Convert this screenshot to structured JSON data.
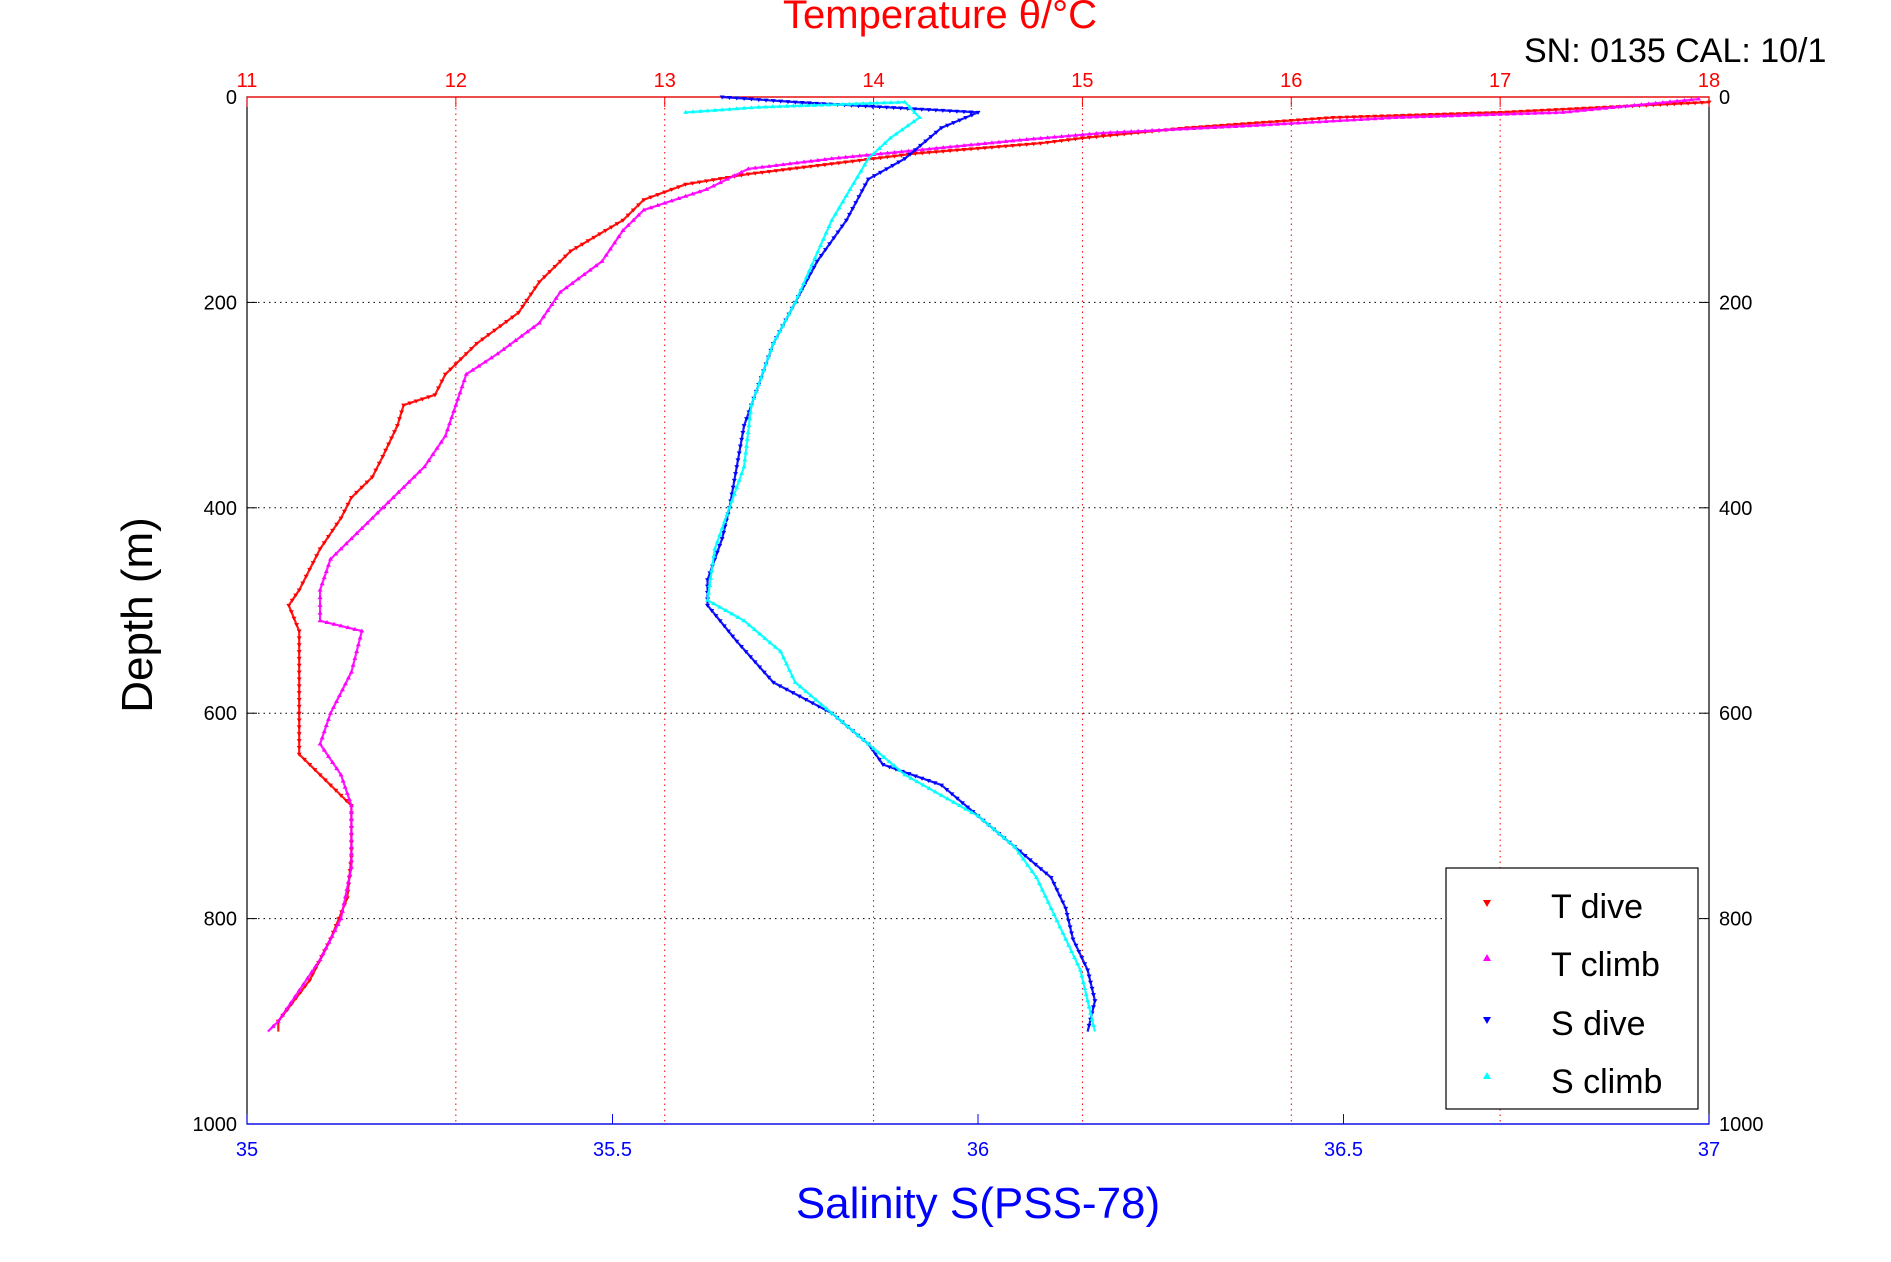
{
  "header": {
    "sn_label": "SN: 0135  CAL: 10/1"
  },
  "colors": {
    "t_dive": "#ff0000",
    "t_climb": "#ff00ff",
    "s_dive": "#0000ff",
    "s_climb": "#00ffff",
    "temp_axis": "#ff0000",
    "sal_axis": "#0000ff",
    "grid": "#000000"
  },
  "chart_data": {
    "type": "line",
    "title": "Temperature θ/°C",
    "xlabel": "Salinity S(PSS-78)",
    "ylabel": "Depth (m)",
    "grid": true,
    "legend_position": "bottom-right",
    "y": {
      "label": "Depth (m)",
      "range": [
        0,
        1000
      ],
      "reversed": true,
      "ticks": [
        0,
        200,
        400,
        600,
        800,
        1000
      ]
    },
    "x_bottom": {
      "label": "Salinity S(PSS-78)",
      "range": [
        35,
        37
      ],
      "ticks": [
        35,
        35.5,
        36,
        36.5,
        37
      ]
    },
    "x_top": {
      "label": "Temperature θ/°C",
      "range": [
        11,
        18
      ],
      "ticks": [
        11,
        12,
        13,
        14,
        15,
        16,
        17,
        18
      ]
    },
    "series": [
      {
        "name": "T dive",
        "axis": "temperature",
        "color": "#ff0000",
        "marker": "down-triangle",
        "points": [
          [
            18.0,
            5
          ],
          [
            17.0,
            15
          ],
          [
            16.2,
            20
          ],
          [
            15.5,
            30
          ],
          [
            15.0,
            40
          ],
          [
            14.8,
            45
          ],
          [
            14.2,
            55
          ],
          [
            13.8,
            65
          ],
          [
            13.4,
            75
          ],
          [
            13.1,
            85
          ],
          [
            12.9,
            100
          ],
          [
            12.8,
            120
          ],
          [
            12.55,
            150
          ],
          [
            12.4,
            180
          ],
          [
            12.3,
            210
          ],
          [
            12.1,
            240
          ],
          [
            11.95,
            270
          ],
          [
            11.9,
            290
          ],
          [
            11.75,
            300
          ],
          [
            11.72,
            320
          ],
          [
            11.65,
            350
          ],
          [
            11.6,
            370
          ],
          [
            11.5,
            390
          ],
          [
            11.45,
            410
          ],
          [
            11.35,
            440
          ],
          [
            11.3,
            460
          ],
          [
            11.25,
            480
          ],
          [
            11.2,
            495
          ],
          [
            11.25,
            520
          ],
          [
            11.25,
            560
          ],
          [
            11.25,
            600
          ],
          [
            11.25,
            640
          ],
          [
            11.35,
            660
          ],
          [
            11.5,
            690
          ],
          [
            11.5,
            740
          ],
          [
            11.48,
            780
          ],
          [
            11.4,
            820
          ],
          [
            11.3,
            860
          ],
          [
            11.15,
            900
          ],
          [
            11.15,
            910
          ]
        ]
      },
      {
        "name": "T climb",
        "axis": "temperature",
        "color": "#ff00ff",
        "marker": "up-triangle",
        "points": [
          [
            17.95,
            2
          ],
          [
            17.3,
            15
          ],
          [
            16.5,
            20
          ],
          [
            15.8,
            28
          ],
          [
            15.1,
            35
          ],
          [
            14.7,
            42
          ],
          [
            14.2,
            52
          ],
          [
            13.8,
            60
          ],
          [
            13.4,
            70
          ],
          [
            13.3,
            80
          ],
          [
            13.2,
            90
          ],
          [
            12.9,
            110
          ],
          [
            12.8,
            130
          ],
          [
            12.7,
            160
          ],
          [
            12.5,
            190
          ],
          [
            12.4,
            220
          ],
          [
            12.2,
            250
          ],
          [
            12.05,
            270
          ],
          [
            12.0,
            300
          ],
          [
            11.95,
            330
          ],
          [
            11.85,
            360
          ],
          [
            11.7,
            390
          ],
          [
            11.55,
            420
          ],
          [
            11.4,
            450
          ],
          [
            11.35,
            480
          ],
          [
            11.35,
            510
          ],
          [
            11.55,
            520
          ],
          [
            11.5,
            560
          ],
          [
            11.4,
            600
          ],
          [
            11.35,
            630
          ],
          [
            11.45,
            660
          ],
          [
            11.5,
            690
          ],
          [
            11.5,
            750
          ],
          [
            11.45,
            800
          ],
          [
            11.35,
            840
          ],
          [
            11.25,
            870
          ],
          [
            11.15,
            900
          ],
          [
            11.1,
            910
          ]
        ]
      },
      {
        "name": "S dive",
        "axis": "salinity",
        "color": "#0000ff",
        "marker": "down-triangle",
        "points": [
          [
            35.65,
            0
          ],
          [
            35.75,
            5
          ],
          [
            36.0,
            15
          ],
          [
            35.95,
            30
          ],
          [
            35.9,
            60
          ],
          [
            35.85,
            80
          ],
          [
            35.82,
            120
          ],
          [
            35.78,
            160
          ],
          [
            35.75,
            200
          ],
          [
            35.72,
            240
          ],
          [
            35.7,
            280
          ],
          [
            35.68,
            320
          ],
          [
            35.67,
            360
          ],
          [
            35.66,
            400
          ],
          [
            35.65,
            430
          ],
          [
            35.63,
            470
          ],
          [
            35.63,
            495
          ],
          [
            35.67,
            530
          ],
          [
            35.72,
            570
          ],
          [
            35.8,
            600
          ],
          [
            35.85,
            630
          ],
          [
            35.87,
            650
          ],
          [
            35.95,
            670
          ],
          [
            36.0,
            700
          ],
          [
            36.05,
            730
          ],
          [
            36.1,
            760
          ],
          [
            36.12,
            790
          ],
          [
            36.13,
            820
          ],
          [
            36.15,
            850
          ],
          [
            36.16,
            880
          ],
          [
            36.15,
            910
          ]
        ]
      },
      {
        "name": "S climb",
        "axis": "salinity",
        "color": "#00ffff",
        "marker": "up-triangle",
        "points": [
          [
            35.6,
            15
          ],
          [
            35.7,
            10
          ],
          [
            35.9,
            5
          ],
          [
            35.92,
            20
          ],
          [
            35.88,
            40
          ],
          [
            35.85,
            60
          ],
          [
            35.8,
            120
          ],
          [
            35.75,
            200
          ],
          [
            35.72,
            240
          ],
          [
            35.69,
            300
          ],
          [
            35.68,
            360
          ],
          [
            35.66,
            400
          ],
          [
            35.64,
            440
          ],
          [
            35.63,
            490
          ],
          [
            35.68,
            510
          ],
          [
            35.73,
            540
          ],
          [
            35.75,
            570
          ],
          [
            35.8,
            600
          ],
          [
            35.85,
            630
          ],
          [
            35.9,
            660
          ],
          [
            35.95,
            680
          ],
          [
            36.0,
            700
          ],
          [
            36.05,
            730
          ],
          [
            36.08,
            760
          ],
          [
            36.1,
            790
          ],
          [
            36.12,
            820
          ],
          [
            36.14,
            850
          ],
          [
            36.15,
            880
          ],
          [
            36.16,
            910
          ]
        ]
      }
    ]
  }
}
